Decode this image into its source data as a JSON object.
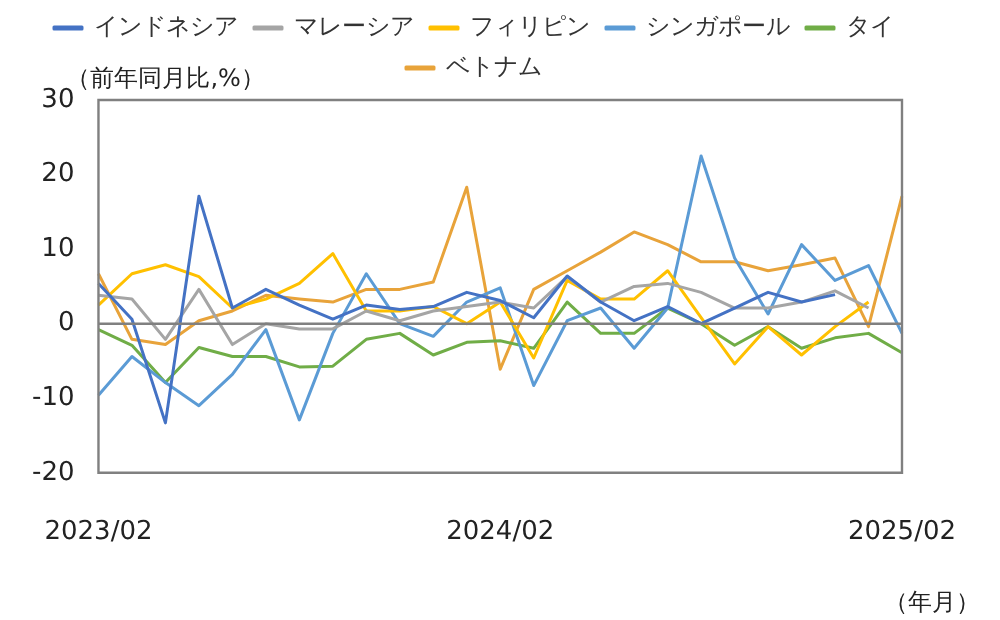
{
  "chart_data": {
    "type": "line",
    "ylabel": "（前年同月比,%）",
    "xlabel": "（年月）",
    "categories": [
      "2023/02",
      null,
      null,
      null,
      null,
      null,
      null,
      null,
      null,
      null,
      null,
      null,
      "2024/02",
      null,
      null,
      null,
      null,
      null,
      null,
      null,
      null,
      null,
      null,
      null,
      "2025/02"
    ],
    "series": [
      {
        "name": "インドネシア",
        "color": "#4472c4",
        "values": [
          5.4,
          0.6,
          -13.3,
          17.1,
          2.1,
          4.6,
          2.5,
          0.6,
          2.5,
          1.9,
          2.3,
          4.2,
          3.1,
          0.8,
          6.4,
          2.9,
          0.4,
          2.3,
          0,
          2.1,
          4.2,
          2.9,
          3.9,
          null,
          null
        ]
      },
      {
        "name": "マレーシア",
        "color": "#a5a5a5",
        "values": [
          3.8,
          3.3,
          -2.1,
          4.6,
          -2.8,
          0,
          -0.7,
          -0.7,
          1.7,
          0.4,
          1.7,
          2.3,
          2.9,
          2.1,
          6.3,
          2.9,
          5,
          5.4,
          4.2,
          2.1,
          2.1,
          2.9,
          4.4,
          2.1,
          null
        ]
      },
      {
        "name": "フィリピン",
        "color": "#ffc000",
        "values": [
          2.5,
          6.7,
          7.9,
          6.3,
          2.1,
          3.3,
          5.4,
          9.4,
          1.7,
          1.7,
          2.3,
          0,
          2.9,
          -4.6,
          5.8,
          3.3,
          3.3,
          7.1,
          0.8,
          -5.4,
          -0.4,
          -4.2,
          -0.4,
          2.9,
          null
        ]
      },
      {
        "name": "シンガポール",
        "color": "#5b9bd5",
        "values": [
          -9.6,
          -4.4,
          -7.9,
          -11,
          -6.8,
          -0.8,
          -12.9,
          -1.3,
          6.7,
          0,
          -1.7,
          2.9,
          4.8,
          -8.3,
          0.4,
          2.1,
          -3.3,
          2.1,
          22.5,
          8.8,
          1.3,
          10.6,
          5.8,
          7.8,
          -1.3
        ]
      },
      {
        "name": "タイ",
        "color": "#70ad47",
        "values": [
          -0.8,
          -2.9,
          -7.9,
          -3.2,
          -4.4,
          -4.4,
          -5.8,
          -5.7,
          -2.1,
          -1.3,
          -4.2,
          -2.5,
          -2.3,
          -3.3,
          2.9,
          -1.3,
          -1.3,
          2.1,
          0,
          -2.9,
          -0.4,
          -3.3,
          -1.9,
          -1.3,
          -3.9
        ]
      },
      {
        "name": "ベトナム",
        "color": "#e8a33a",
        "values": [
          6.7,
          -2.1,
          -2.8,
          0.4,
          1.7,
          3.8,
          3.3,
          2.9,
          4.6,
          4.6,
          5.6,
          18.3,
          -6.1,
          4.6,
          7.1,
          9.6,
          12.3,
          10.6,
          8.3,
          8.3,
          7.1,
          7.9,
          8.8,
          -0.4,
          17.1
        ]
      }
    ],
    "ylim": [
      -20,
      30
    ],
    "yticks": [
      -20,
      -10,
      0,
      10,
      20,
      30
    ],
    "ref_lines": [
      {
        "axis": "y",
        "value": 0,
        "color": "#808080"
      }
    ],
    "grid": false,
    "legend": "top"
  }
}
